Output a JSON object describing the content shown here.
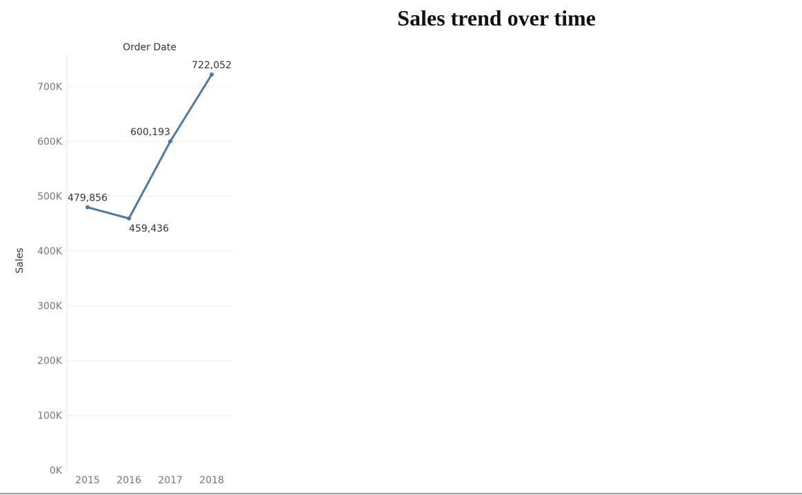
{
  "title": "Sales trend over time",
  "chart_data": {
    "type": "line",
    "title": "Sales trend over time",
    "xlabel": "Order Date",
    "ylabel": "Sales",
    "categories": [
      "2015",
      "2016",
      "2017",
      "2018"
    ],
    "values": [
      479856,
      459436,
      600193,
      722052
    ],
    "data_labels": [
      "479,856",
      "459,436",
      "600,193",
      "722,052"
    ],
    "y_ticks": [
      {
        "value": 0,
        "label": "0K"
      },
      {
        "value": 100000,
        "label": "100K"
      },
      {
        "value": 200000,
        "label": "200K"
      },
      {
        "value": 300000,
        "label": "300K"
      },
      {
        "value": 400000,
        "label": "400K"
      },
      {
        "value": 500000,
        "label": "500K"
      },
      {
        "value": 600000,
        "label": "600K"
      },
      {
        "value": 700000,
        "label": "700K"
      }
    ],
    "ylim": [
      0,
      760000
    ],
    "grid": true,
    "line_color": "#4e79a7"
  }
}
